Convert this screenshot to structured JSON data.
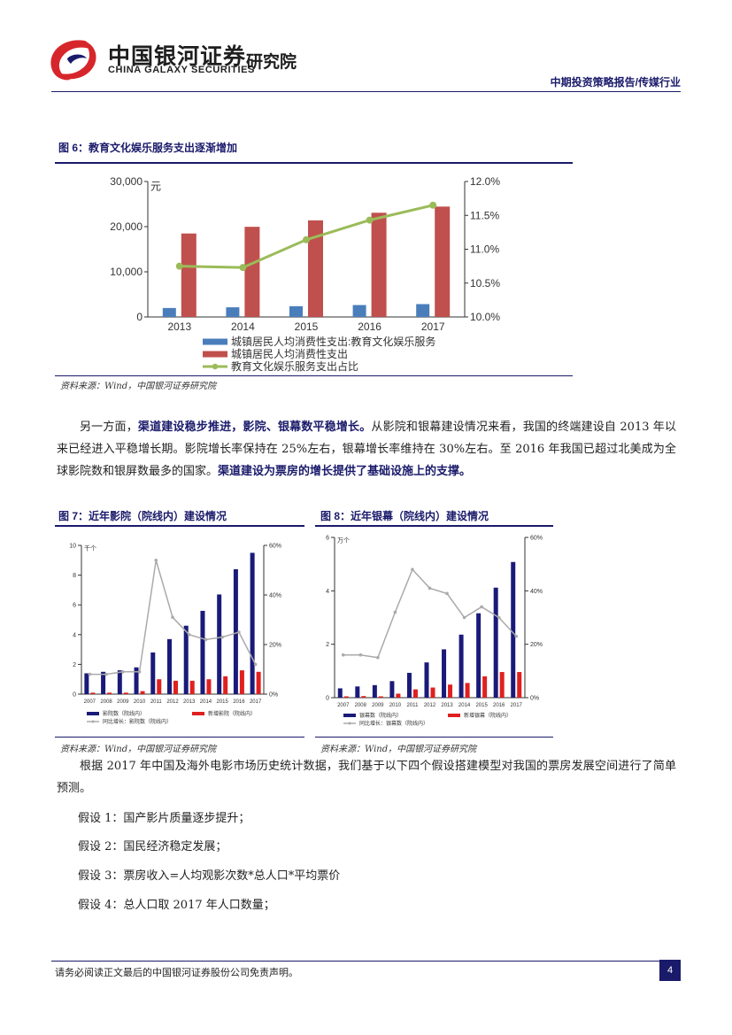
{
  "header": {
    "brand_cn": "中国银河证券",
    "brand_en": "CHINA GALAXY SECURITIES",
    "institute": "研究院",
    "report_type": "中期投资策略报告/传媒行业"
  },
  "figure6": {
    "title": "图 6：教育文化娱乐服务支出逐渐增加",
    "source": "资料来源：Wind，中国银河证券研究院"
  },
  "figure7": {
    "title": "图 7：近年影院（院线内）建设情况",
    "source": "资料来源：Wind，中国银河证券研究院"
  },
  "figure8": {
    "title": "图 8：近年银幕（院线内）建设情况",
    "source": "资料来源：Wind，中国银河证券研究院"
  },
  "chart_data": [
    {
      "type": "bar",
      "categories": [
        "2013",
        "2014",
        "2015",
        "2016",
        "2017"
      ],
      "series": [
        {
          "name": "城镇居民人均消费性支出:教育文化娱乐服务",
          "kind": "bar",
          "axis": "left",
          "color": "#4a7ebb",
          "values": [
            1988,
            2142,
            2383,
            2638,
            2847
          ]
        },
        {
          "name": "城镇居民人均消费性支出",
          "kind": "bar",
          "axis": "left",
          "color": "#c0504d",
          "values": [
            18488,
            19968,
            21392,
            23079,
            24445
          ]
        },
        {
          "name": "教育文化娱乐服务支出占比",
          "kind": "line",
          "axis": "right",
          "color": "#9bbb59",
          "values": [
            10.75,
            10.73,
            11.14,
            11.43,
            11.65
          ]
        }
      ],
      "left_axis": {
        "unit": "元",
        "ticks": [
          "0",
          "10,000",
          "20,000",
          "30,000"
        ],
        "ylim": [
          0,
          30000
        ]
      },
      "right_axis": {
        "ticks": [
          "10.0%",
          "10.5%",
          "11.0%",
          "11.5%",
          "12.0%"
        ],
        "ylim": [
          10.0,
          12.0
        ]
      },
      "legend": "bottom"
    },
    {
      "type": "bar",
      "categories": [
        "2007",
        "2008",
        "2009",
        "2010",
        "2011",
        "2012",
        "2013",
        "2014",
        "2015",
        "2016",
        "2017"
      ],
      "series": [
        {
          "name": "影院数（院线内）",
          "kind": "bar",
          "axis": "left",
          "color": "#1a1a7a",
          "values": [
            1.4,
            1.5,
            1.6,
            1.8,
            2.8,
            3.7,
            4.6,
            5.6,
            6.7,
            8.4,
            9.5
          ]
        },
        {
          "name": "新增影院（院线内）",
          "kind": "bar",
          "axis": "left",
          "color": "#e02020",
          "values": [
            0.1,
            0.1,
            0.1,
            0.2,
            1.0,
            0.9,
            0.9,
            1.0,
            1.2,
            1.6,
            1.5
          ]
        },
        {
          "name": "同比增长：影院数（院线内）",
          "kind": "line",
          "axis": "right",
          "color": "#aaaaaa",
          "values": [
            8,
            8,
            9,
            9,
            54,
            31,
            24,
            22,
            23,
            25,
            12
          ]
        }
      ],
      "left_axis": {
        "unit": "千个",
        "ticks": [
          "0",
          "2",
          "4",
          "6",
          "8",
          "10"
        ],
        "ylim": [
          0,
          10
        ]
      },
      "right_axis": {
        "ticks": [
          "0%",
          "20%",
          "40%",
          "60%"
        ],
        "ylim": [
          0,
          60
        ]
      },
      "legend": "bottom"
    },
    {
      "type": "bar",
      "categories": [
        "2007",
        "2008",
        "2009",
        "2010",
        "2011",
        "2012",
        "2013",
        "2014",
        "2015",
        "2016",
        "2017"
      ],
      "series": [
        {
          "name": "银幕数（院线内）",
          "kind": "bar",
          "axis": "left",
          "color": "#1a1a7a",
          "values": [
            0.35,
            0.42,
            0.47,
            0.62,
            0.93,
            1.32,
            1.81,
            2.36,
            3.16,
            4.12,
            5.08
          ]
        },
        {
          "name": "新增银幕（院线内）",
          "kind": "bar",
          "axis": "left",
          "color": "#e02020",
          "values": [
            0.05,
            0.06,
            0.05,
            0.15,
            0.31,
            0.38,
            0.49,
            0.55,
            0.8,
            0.96,
            0.96
          ]
        },
        {
          "name": "同比增长：银幕数（院线内）",
          "kind": "line",
          "axis": "right",
          "color": "#aaaaaa",
          "values": [
            16,
            16,
            15,
            32,
            48,
            41,
            39,
            30,
            34,
            30,
            23
          ]
        }
      ],
      "left_axis": {
        "unit": "万个",
        "ticks": [
          "0",
          "2",
          "4",
          "6"
        ],
        "ylim": [
          0,
          6
        ]
      },
      "right_axis": {
        "ticks": [
          "0%",
          "20%",
          "40%",
          "60%"
        ],
        "ylim": [
          0,
          60
        ]
      },
      "legend": "bottom"
    }
  ],
  "body": {
    "para1_a": "另一方面，",
    "para1_b": "渠道建设稳步推进，影院、银幕数平稳增长。",
    "para1_c": "从影院和银幕建设情况来看，我国的终端建设自 2013 年以来已经进入平稳增长期。影院增长率保持在 25%左右，银幕增长率维持在 30%左右。至 2016 年我国已超过北美成为全球影院数和银屏数最多的国家。",
    "para1_d": "渠道建设为票房的增长提供了基础设施上的支撑。",
    "para2": "根据 2017 年中国及海外电影市场历史统计数据，我们基于以下四个假设搭建模型对我国的票房发展空间进行了简单预测。",
    "assumptions": [
      "假设 1：国产影片质量逐步提升；",
      "假设 2：国民经济稳定发展；",
      "假设 3：票房收入=人均观影次数*总人口*平均票价",
      "假设 4：总人口取 2017 年人口数量；"
    ]
  },
  "footer": {
    "disclaimer": "请务必阅读正文最后的中国银河证券股份公司免责声明。",
    "page": "4"
  }
}
